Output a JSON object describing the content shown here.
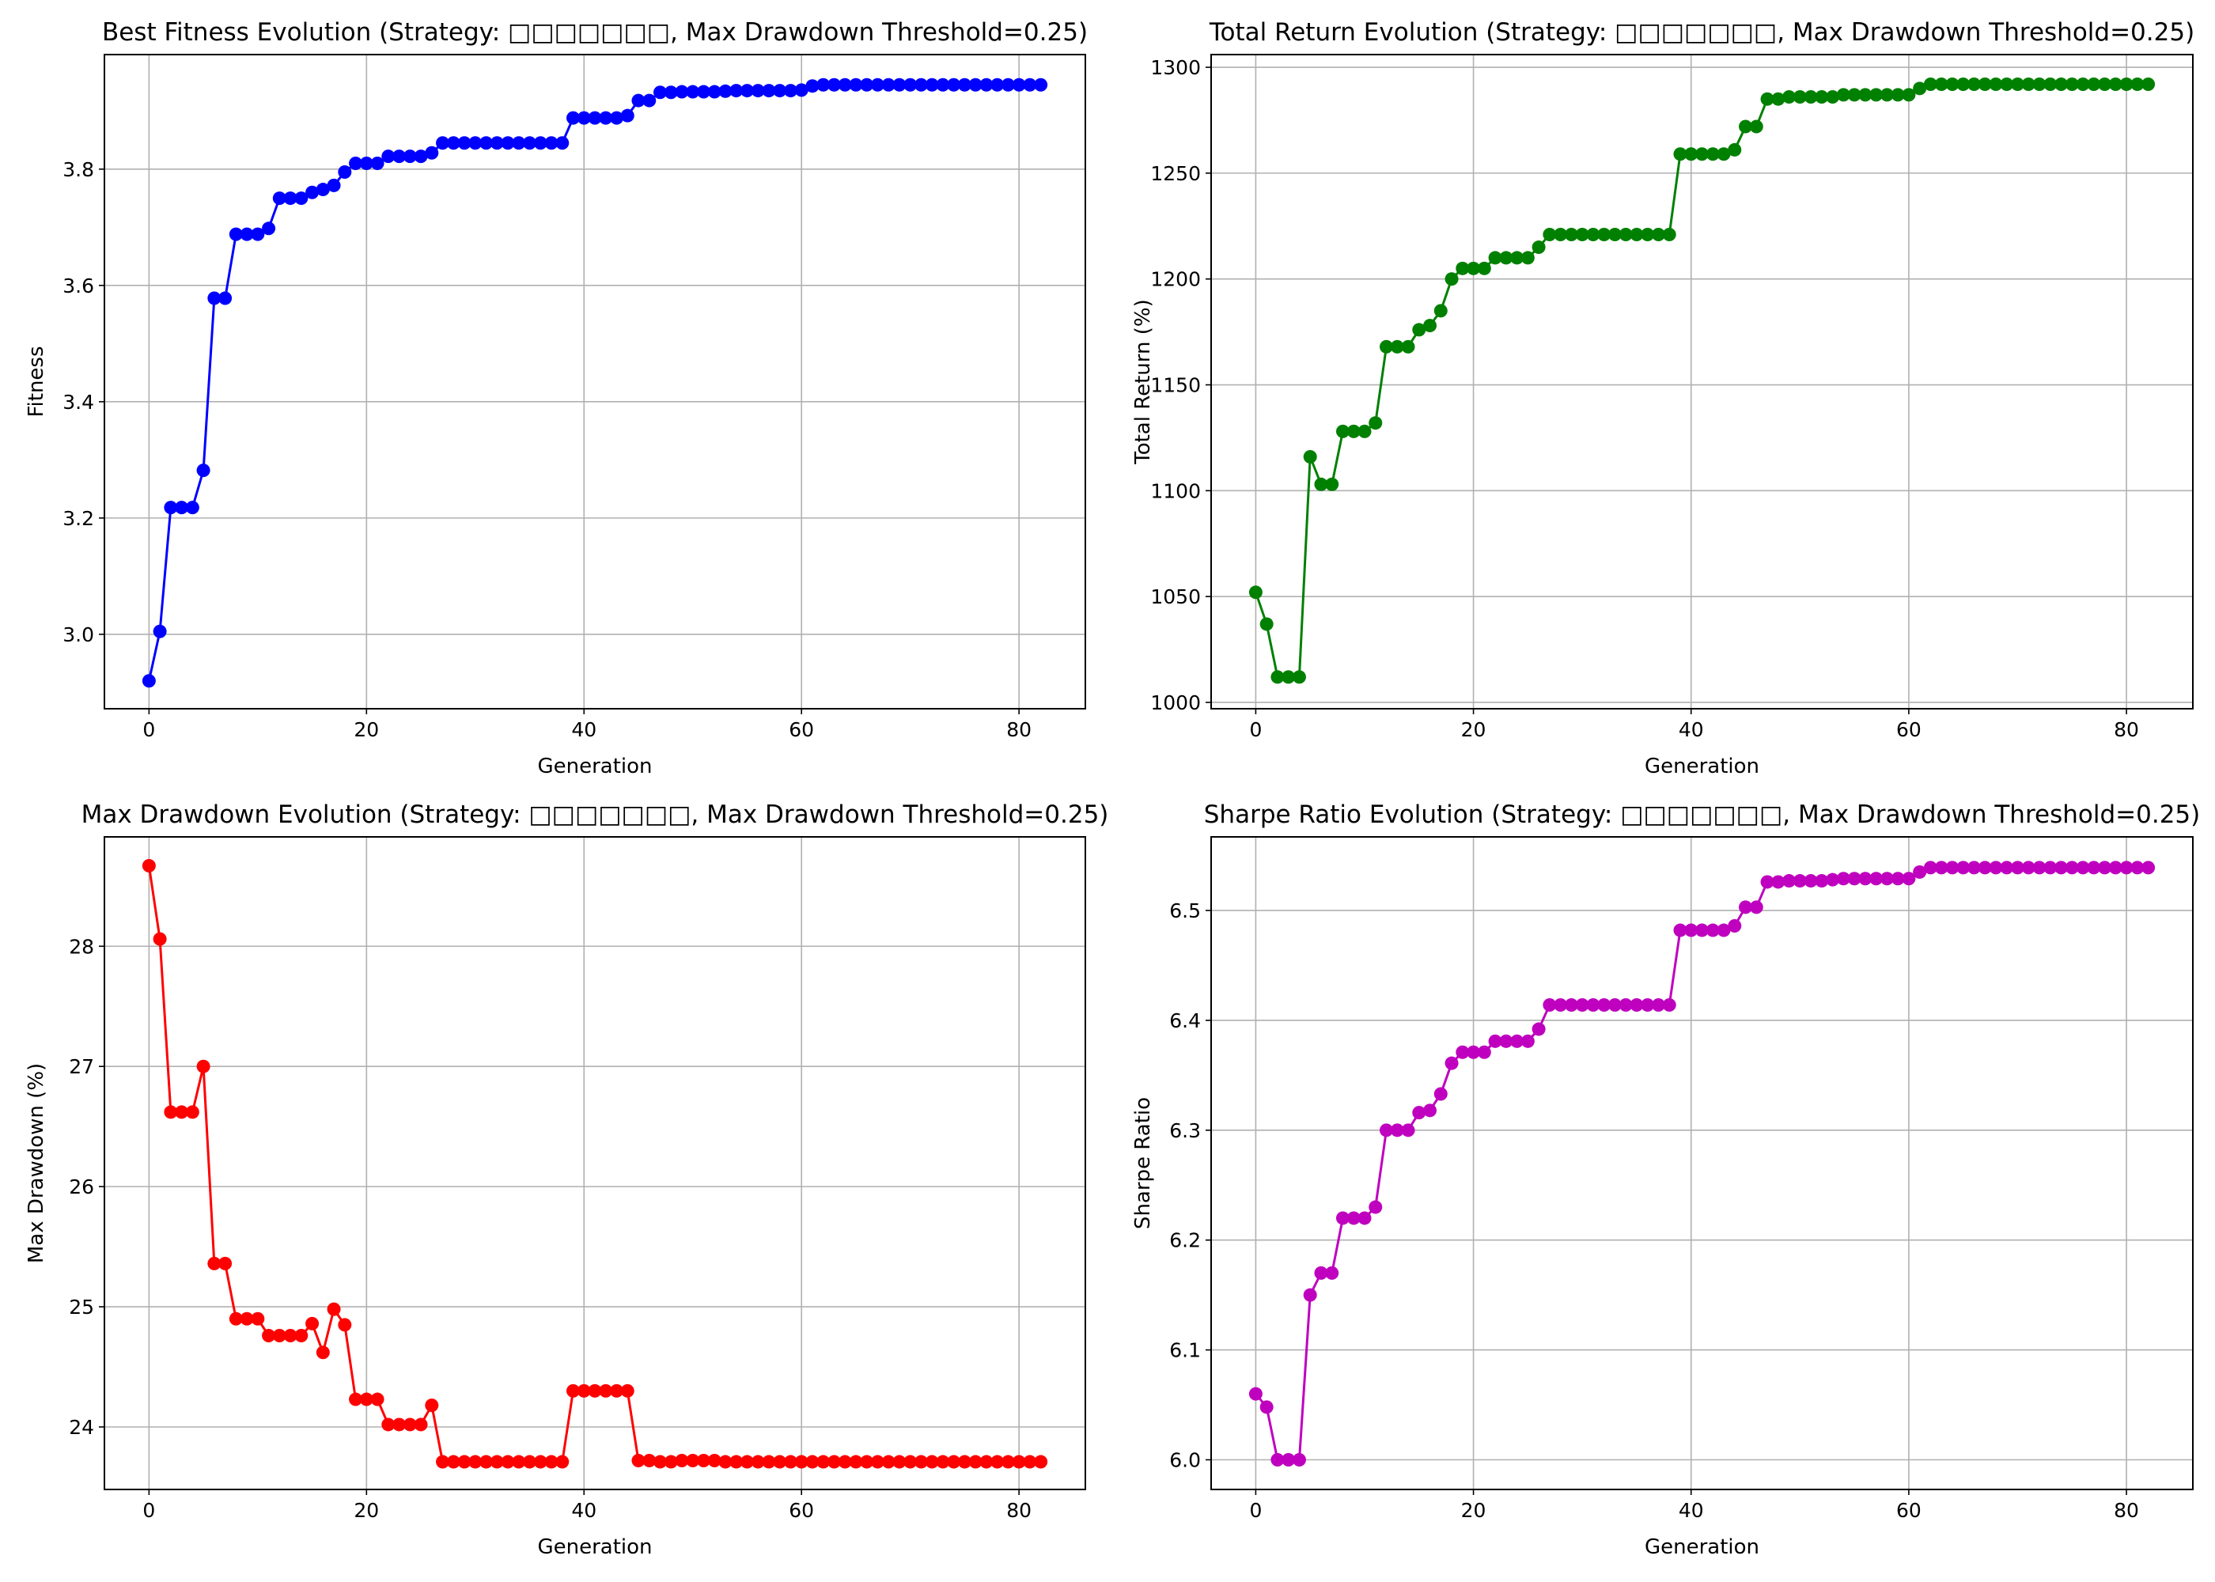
{
  "chart_data": [
    {
      "type": "line",
      "title": "Best Fitness Evolution (Strategy: □□□□□□□, Max Drawdown Threshold=0.25)",
      "xlabel": "Generation",
      "ylabel": "Fitness",
      "color": "#0000ff",
      "marker": "circle",
      "grid": true,
      "xlim": [
        -4.1,
        86.1
      ],
      "ylim": [
        2.872,
        3.997
      ],
      "xticks": [
        0,
        20,
        40,
        60,
        80
      ],
      "yticks": [
        3.0,
        3.2,
        3.4,
        3.6,
        3.8
      ],
      "yticklabels": [
        "3.0",
        "3.2",
        "3.4",
        "3.6",
        "3.8"
      ],
      "x": [
        0,
        1,
        2,
        3,
        4,
        5,
        6,
        7,
        8,
        9,
        10,
        11,
        12,
        13,
        14,
        15,
        16,
        17,
        18,
        19,
        20,
        21,
        22,
        23,
        24,
        25,
        26,
        27,
        28,
        29,
        30,
        31,
        32,
        33,
        34,
        35,
        36,
        37,
        38,
        39,
        40,
        41,
        42,
        43,
        44,
        45,
        46,
        47,
        48,
        49,
        50,
        51,
        52,
        53,
        54,
        55,
        56,
        57,
        58,
        59,
        60,
        61,
        62,
        63,
        64,
        65,
        66,
        67,
        68,
        69,
        70,
        71,
        72,
        73,
        74,
        75,
        76,
        77,
        78,
        79,
        80,
        81,
        82
      ],
      "y": [
        2.92,
        3.005,
        3.218,
        3.218,
        3.218,
        3.282,
        3.578,
        3.578,
        3.688,
        3.688,
        3.688,
        3.698,
        3.75,
        3.75,
        3.75,
        3.76,
        3.765,
        3.772,
        3.795,
        3.81,
        3.81,
        3.81,
        3.822,
        3.822,
        3.822,
        3.822,
        3.828,
        3.845,
        3.845,
        3.845,
        3.845,
        3.845,
        3.845,
        3.845,
        3.845,
        3.845,
        3.845,
        3.845,
        3.845,
        3.888,
        3.888,
        3.888,
        3.888,
        3.888,
        3.892,
        3.918,
        3.918,
        3.932,
        3.932,
        3.933,
        3.933,
        3.933,
        3.933,
        3.934,
        3.935,
        3.935,
        3.935,
        3.935,
        3.935,
        3.935,
        3.936,
        3.943,
        3.945,
        3.945,
        3.945,
        3.945,
        3.945,
        3.945,
        3.945,
        3.945,
        3.945,
        3.945,
        3.945,
        3.945,
        3.945,
        3.945,
        3.945,
        3.945,
        3.945,
        3.945,
        3.945,
        3.945,
        3.945
      ]
    },
    {
      "type": "line",
      "title": "Total Return Evolution (Strategy: □□□□□□□, Max Drawdown Threshold=0.25)",
      "xlabel": "Generation",
      "ylabel": "Total Return (%)",
      "color": "#008000",
      "marker": "circle",
      "grid": true,
      "xlim": [
        -4.1,
        86.1
      ],
      "ylim": [
        997,
        1306
      ],
      "xticks": [
        0,
        20,
        40,
        60,
        80
      ],
      "yticks": [
        1000,
        1050,
        1100,
        1150,
        1200,
        1250,
        1300
      ],
      "yticklabels": [
        "1000",
        "1050",
        "1100",
        "1150",
        "1200",
        "1250",
        "1300"
      ],
      "x": [
        0,
        1,
        2,
        3,
        4,
        5,
        6,
        7,
        8,
        9,
        10,
        11,
        12,
        13,
        14,
        15,
        16,
        17,
        18,
        19,
        20,
        21,
        22,
        23,
        24,
        25,
        26,
        27,
        28,
        29,
        30,
        31,
        32,
        33,
        34,
        35,
        36,
        37,
        38,
        39,
        40,
        41,
        42,
        43,
        44,
        45,
        46,
        47,
        48,
        49,
        50,
        51,
        52,
        53,
        54,
        55,
        56,
        57,
        58,
        59,
        60,
        61,
        62,
        63,
        64,
        65,
        66,
        67,
        68,
        69,
        70,
        71,
        72,
        73,
        74,
        75,
        76,
        77,
        78,
        79,
        80,
        81,
        82
      ],
      "y": [
        1052,
        1037,
        1012,
        1012,
        1012,
        1116,
        1103,
        1103,
        1128,
        1128,
        1128,
        1132,
        1168,
        1168,
        1168,
        1176,
        1178,
        1185,
        1200,
        1205,
        1205,
        1205,
        1210,
        1210,
        1210,
        1210,
        1215,
        1221,
        1221,
        1221,
        1221,
        1221,
        1221,
        1221,
        1221,
        1221,
        1221,
        1221,
        1221,
        1259,
        1259,
        1259,
        1259,
        1259,
        1261,
        1272,
        1272,
        1285,
        1285,
        1286,
        1286,
        1286,
        1286,
        1286,
        1287,
        1287,
        1287,
        1287,
        1287,
        1287,
        1287,
        1290,
        1292,
        1292,
        1292,
        1292,
        1292,
        1292,
        1292,
        1292,
        1292,
        1292,
        1292,
        1292,
        1292,
        1292,
        1292,
        1292,
        1292,
        1292,
        1292,
        1292,
        1292
      ]
    },
    {
      "type": "line",
      "title": "Max Drawdown Evolution (Strategy: □□□□□□□, Max Drawdown Threshold=0.25)",
      "xlabel": "Generation",
      "ylabel": "Max Drawdown (%)",
      "color": "#ff0000",
      "marker": "circle",
      "grid": true,
      "xlim": [
        -4.1,
        86.1
      ],
      "ylim": [
        23.48,
        28.91
      ],
      "xticks": [
        0,
        20,
        40,
        60,
        80
      ],
      "yticks": [
        24,
        25,
        26,
        27,
        28
      ],
      "yticklabels": [
        "24",
        "25",
        "26",
        "27",
        "28"
      ],
      "x": [
        0,
        1,
        2,
        3,
        4,
        5,
        6,
        7,
        8,
        9,
        10,
        11,
        12,
        13,
        14,
        15,
        16,
        17,
        18,
        19,
        20,
        21,
        22,
        23,
        24,
        25,
        26,
        27,
        28,
        29,
        30,
        31,
        32,
        33,
        34,
        35,
        36,
        37,
        38,
        39,
        40,
        41,
        42,
        43,
        44,
        45,
        46,
        47,
        48,
        49,
        50,
        51,
        52,
        53,
        54,
        55,
        56,
        57,
        58,
        59,
        60,
        61,
        62,
        63,
        64,
        65,
        66,
        67,
        68,
        69,
        70,
        71,
        72,
        73,
        74,
        75,
        76,
        77,
        78,
        79,
        80,
        81,
        82
      ],
      "y": [
        28.67,
        28.06,
        26.62,
        26.62,
        26.62,
        27.0,
        25.36,
        25.36,
        24.9,
        24.9,
        24.9,
        24.76,
        24.76,
        24.76,
        24.76,
        24.86,
        24.62,
        24.98,
        24.85,
        24.23,
        24.23,
        24.23,
        24.02,
        24.02,
        24.02,
        24.02,
        24.18,
        23.71,
        23.71,
        23.71,
        23.71,
        23.71,
        23.71,
        23.71,
        23.71,
        23.71,
        23.71,
        23.71,
        23.71,
        24.3,
        24.3,
        24.3,
        24.3,
        24.3,
        24.3,
        23.72,
        23.72,
        23.71,
        23.71,
        23.72,
        23.72,
        23.72,
        23.72,
        23.71,
        23.71,
        23.71,
        23.71,
        23.71,
        23.71,
        23.71,
        23.71,
        23.71,
        23.71,
        23.71,
        23.71,
        23.71,
        23.71,
        23.71,
        23.71,
        23.71,
        23.71,
        23.71,
        23.71,
        23.71,
        23.71,
        23.71,
        23.71,
        23.71,
        23.71,
        23.71,
        23.71,
        23.71,
        23.71
      ]
    },
    {
      "type": "line",
      "title": "Sharpe Ratio Evolution (Strategy: □□□□□□□, Max Drawdown Threshold=0.25)",
      "xlabel": "Generation",
      "ylabel": "Sharpe Ratio",
      "color": "#bf00bf",
      "marker": "circle",
      "grid": true,
      "xlim": [
        -4.1,
        86.1
      ],
      "ylim": [
        5.973,
        6.567
      ],
      "xticks": [
        0,
        20,
        40,
        60,
        80
      ],
      "yticks": [
        6.0,
        6.1,
        6.2,
        6.3,
        6.4,
        6.5
      ],
      "yticklabels": [
        "6.0",
        "6.1",
        "6.2",
        "6.3",
        "6.4",
        "6.5"
      ],
      "x": [
        0,
        1,
        2,
        3,
        4,
        5,
        6,
        7,
        8,
        9,
        10,
        11,
        12,
        13,
        14,
        15,
        16,
        17,
        18,
        19,
        20,
        21,
        22,
        23,
        24,
        25,
        26,
        27,
        28,
        29,
        30,
        31,
        32,
        33,
        34,
        35,
        36,
        37,
        38,
        39,
        40,
        41,
        42,
        43,
        44,
        45,
        46,
        47,
        48,
        49,
        50,
        51,
        52,
        53,
        54,
        55,
        56,
        57,
        58,
        59,
        60,
        61,
        62,
        63,
        64,
        65,
        66,
        67,
        68,
        69,
        70,
        71,
        72,
        73,
        74,
        75,
        76,
        77,
        78,
        79,
        80,
        81,
        82
      ],
      "y": [
        6.06,
        6.048,
        6.0,
        6.0,
        6.0,
        6.15,
        6.17,
        6.17,
        6.22,
        6.22,
        6.22,
        6.23,
        6.3,
        6.3,
        6.3,
        6.316,
        6.318,
        6.333,
        6.361,
        6.371,
        6.371,
        6.371,
        6.381,
        6.381,
        6.381,
        6.381,
        6.392,
        6.414,
        6.414,
        6.414,
        6.414,
        6.414,
        6.414,
        6.414,
        6.414,
        6.414,
        6.414,
        6.414,
        6.414,
        6.482,
        6.482,
        6.482,
        6.482,
        6.482,
        6.486,
        6.503,
        6.503,
        6.526,
        6.526,
        6.527,
        6.527,
        6.527,
        6.527,
        6.528,
        6.529,
        6.529,
        6.529,
        6.529,
        6.529,
        6.529,
        6.529,
        6.535,
        6.539,
        6.539,
        6.539,
        6.539,
        6.539,
        6.539,
        6.539,
        6.539,
        6.539,
        6.539,
        6.539,
        6.539,
        6.539,
        6.539,
        6.539,
        6.539,
        6.539,
        6.539,
        6.539,
        6.539,
        6.539
      ]
    }
  ]
}
